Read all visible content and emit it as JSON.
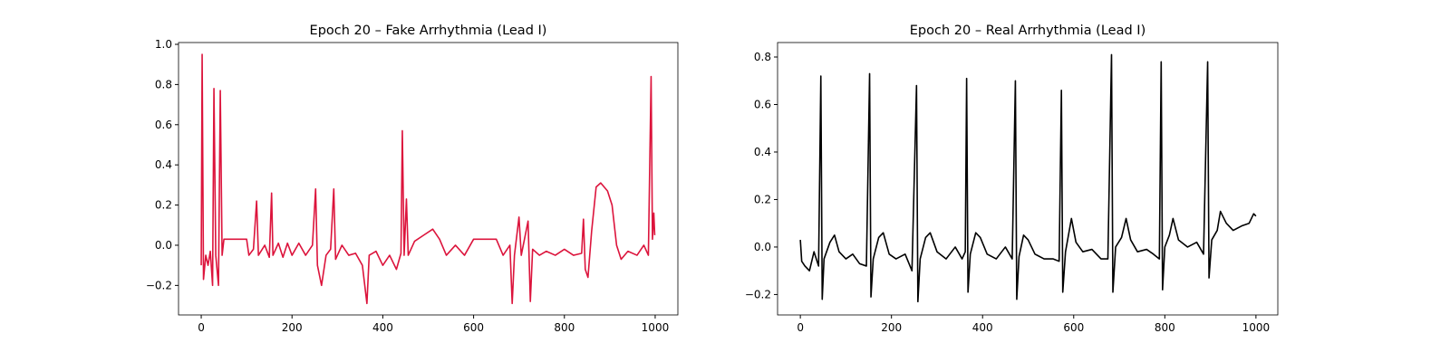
{
  "chart_data": [
    {
      "type": "line",
      "title": "Epoch 20 – Fake Arrhythmia (Lead I)",
      "color": "#dc143c",
      "x": [
        0,
        2,
        5,
        10,
        15,
        20,
        25,
        28,
        32,
        38,
        42,
        46,
        50,
        100,
        105,
        115,
        122,
        126,
        140,
        150,
        155,
        158,
        170,
        180,
        190,
        200,
        215,
        230,
        245,
        252,
        256,
        265,
        275,
        285,
        292,
        296,
        310,
        325,
        340,
        355,
        365,
        370,
        385,
        400,
        415,
        430,
        440,
        443,
        447,
        452,
        456,
        470,
        490,
        510,
        525,
        540,
        560,
        580,
        600,
        650,
        665,
        680,
        685,
        690,
        700,
        705,
        720,
        725,
        730,
        745,
        760,
        780,
        800,
        820,
        838,
        842,
        846,
        852,
        860,
        870,
        880,
        895,
        905,
        915,
        925,
        940,
        960,
        975,
        985,
        991,
        994,
        997,
        999
      ],
      "values": [
        -0.1,
        0.95,
        -0.17,
        -0.05,
        -0.1,
        -0.03,
        -0.2,
        0.78,
        -0.05,
        -0.2,
        0.77,
        -0.05,
        0.03,
        0.03,
        -0.05,
        -0.02,
        0.22,
        -0.05,
        0.0,
        -0.06,
        0.26,
        -0.05,
        0.01,
        -0.06,
        0.01,
        -0.05,
        0.01,
        -0.05,
        0.0,
        0.28,
        -0.1,
        -0.2,
        -0.05,
        -0.02,
        0.28,
        -0.07,
        0.0,
        -0.05,
        -0.04,
        -0.1,
        -0.29,
        -0.05,
        -0.03,
        -0.1,
        -0.05,
        -0.12,
        -0.04,
        0.57,
        -0.05,
        0.23,
        -0.05,
        0.02,
        0.05,
        0.08,
        0.03,
        -0.05,
        0.0,
        -0.05,
        0.03,
        0.03,
        -0.05,
        0.0,
        -0.29,
        -0.05,
        0.14,
        -0.05,
        0.12,
        -0.28,
        -0.02,
        -0.05,
        -0.03,
        -0.05,
        -0.02,
        -0.05,
        -0.04,
        0.13,
        -0.12,
        -0.16,
        0.07,
        0.29,
        0.31,
        0.27,
        0.2,
        0.0,
        -0.07,
        -0.03,
        -0.05,
        0.0,
        -0.05,
        0.84,
        0.03,
        0.16,
        0.05
      ],
      "xlim": [
        -50,
        1050
      ],
      "ylim": [
        -0.347,
        1.009
      ],
      "xticks": [
        0,
        200,
        400,
        600,
        800,
        1000
      ],
      "yticks": [
        {
          "value": -0.2,
          "label": "−0.2"
        },
        {
          "value": 0,
          "label": "0.0"
        },
        0.2,
        0.4,
        0.6,
        0.8,
        {
          "value": 1,
          "label": "1.0"
        }
      ]
    },
    {
      "type": "line",
      "title": "Epoch 20 – Real Arrhythmia (Lead I)",
      "color": "#000000",
      "x": [
        0,
        3,
        10,
        20,
        30,
        40,
        45,
        48,
        52,
        65,
        75,
        85,
        100,
        115,
        130,
        145,
        152,
        155,
        160,
        172,
        182,
        195,
        210,
        230,
        245,
        255,
        258,
        263,
        275,
        285,
        300,
        320,
        340,
        355,
        362,
        365,
        368,
        373,
        385,
        395,
        410,
        430,
        450,
        465,
        472,
        475,
        480,
        490,
        500,
        515,
        535,
        555,
        568,
        573,
        576,
        582,
        595,
        605,
        620,
        640,
        660,
        675,
        683,
        686,
        692,
        705,
        715,
        725,
        740,
        760,
        775,
        788,
        792,
        795,
        800,
        810,
        818,
        830,
        850,
        870,
        885,
        894,
        897,
        903,
        915,
        922,
        935,
        950,
        970,
        985,
        995,
        1000
      ],
      "values": [
        0.03,
        -0.06,
        -0.08,
        -0.1,
        -0.02,
        -0.08,
        0.72,
        -0.22,
        -0.05,
        0.02,
        0.05,
        -0.02,
        -0.05,
        -0.03,
        -0.07,
        -0.08,
        0.73,
        -0.21,
        -0.05,
        0.04,
        0.06,
        -0.03,
        -0.05,
        -0.03,
        -0.1,
        0.68,
        -0.23,
        -0.05,
        0.04,
        0.06,
        -0.02,
        -0.05,
        0.0,
        -0.05,
        -0.02,
        0.71,
        -0.19,
        -0.03,
        0.06,
        0.04,
        -0.03,
        -0.05,
        0.0,
        -0.05,
        0.7,
        -0.22,
        -0.04,
        0.05,
        0.03,
        -0.03,
        -0.05,
        -0.05,
        -0.06,
        0.66,
        -0.19,
        -0.02,
        0.12,
        0.02,
        -0.02,
        -0.01,
        -0.05,
        -0.05,
        0.81,
        -0.19,
        0.0,
        0.04,
        0.12,
        0.03,
        -0.02,
        -0.01,
        -0.03,
        -0.05,
        0.78,
        -0.18,
        0.0,
        0.05,
        0.12,
        0.03,
        0.0,
        0.02,
        -0.03,
        0.78,
        -0.13,
        0.03,
        0.07,
        0.15,
        0.1,
        0.07,
        0.09,
        0.1,
        0.14,
        0.13
      ],
      "xlim": [
        -50,
        1048
      ],
      "ylim": [
        -0.286,
        0.861
      ],
      "xticks": [
        0,
        200,
        400,
        600,
        800,
        1000
      ],
      "yticks": [
        {
          "value": -0.2,
          "label": "−0.2"
        },
        {
          "value": 0,
          "label": "0.0"
        },
        0.2,
        0.4,
        0.6,
        0.8
      ]
    }
  ]
}
